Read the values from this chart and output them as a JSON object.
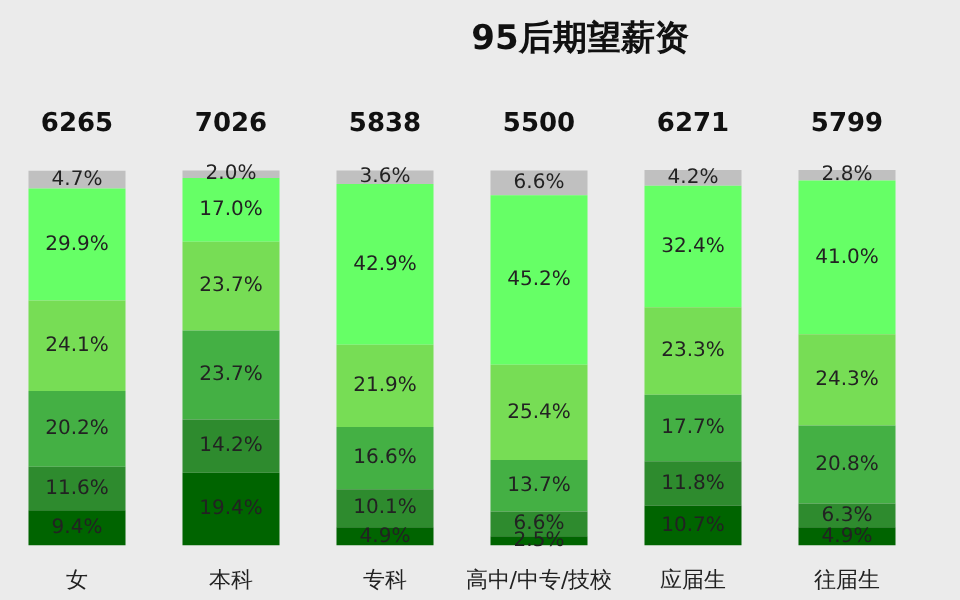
{
  "chart_data": {
    "type": "bar",
    "title": "95后期望薪资",
    "stacked": true,
    "legend": false,
    "grid": false,
    "categories": [
      "女",
      "本科",
      "专科",
      "高中/中专/技校",
      "应届生",
      "往届生"
    ],
    "series": [
      {
        "color": "#006400",
        "values": [
          9.4,
          19.4,
          4.9,
          2.5,
          10.7,
          4.9
        ],
        "value_labels": [
          "9.4%",
          "19.4%",
          "4.9%",
          "2.5%",
          "10.7%",
          "4.9%"
        ]
      },
      {
        "color": "#2e8b2e",
        "values": [
          11.6,
          14.2,
          10.1,
          6.6,
          11.8,
          6.3
        ],
        "value_labels": [
          "11.6%",
          "14.2%",
          "10.1%",
          "6.6%",
          "11.8%",
          "6.3%"
        ]
      },
      {
        "color": "#44b044",
        "values": [
          20.2,
          23.7,
          16.6,
          13.7,
          17.7,
          20.8
        ],
        "value_labels": [
          "20.2%",
          "23.7%",
          "16.6%",
          "13.7%",
          "17.7%",
          "20.8%"
        ]
      },
      {
        "color": "#77dd55",
        "values": [
          24.1,
          23.7,
          21.9,
          25.4,
          23.3,
          24.3
        ],
        "value_labels": [
          "24.1%",
          "23.7%",
          "21.9%",
          "25.4%",
          "23.3%",
          "24.3%"
        ]
      },
      {
        "color": "#66ff66",
        "values": [
          29.9,
          17.0,
          42.9,
          45.2,
          32.4,
          41.0
        ],
        "value_labels": [
          "29.9%",
          "17.0%",
          "42.9%",
          "45.2%",
          "32.4%",
          "41.0%"
        ]
      },
      {
        "color": "#c0c0c0",
        "values": [
          4.7,
          2.0,
          3.6,
          6.6,
          4.2,
          2.8
        ],
        "value_labels": [
          "4.7%",
          "2.0%",
          "3.6%",
          "6.6%",
          "4.2%",
          "2.8%"
        ]
      }
    ],
    "annotations": [
      "6265",
      "7026",
      "5838",
      "5500",
      "6271",
      "5799"
    ]
  }
}
